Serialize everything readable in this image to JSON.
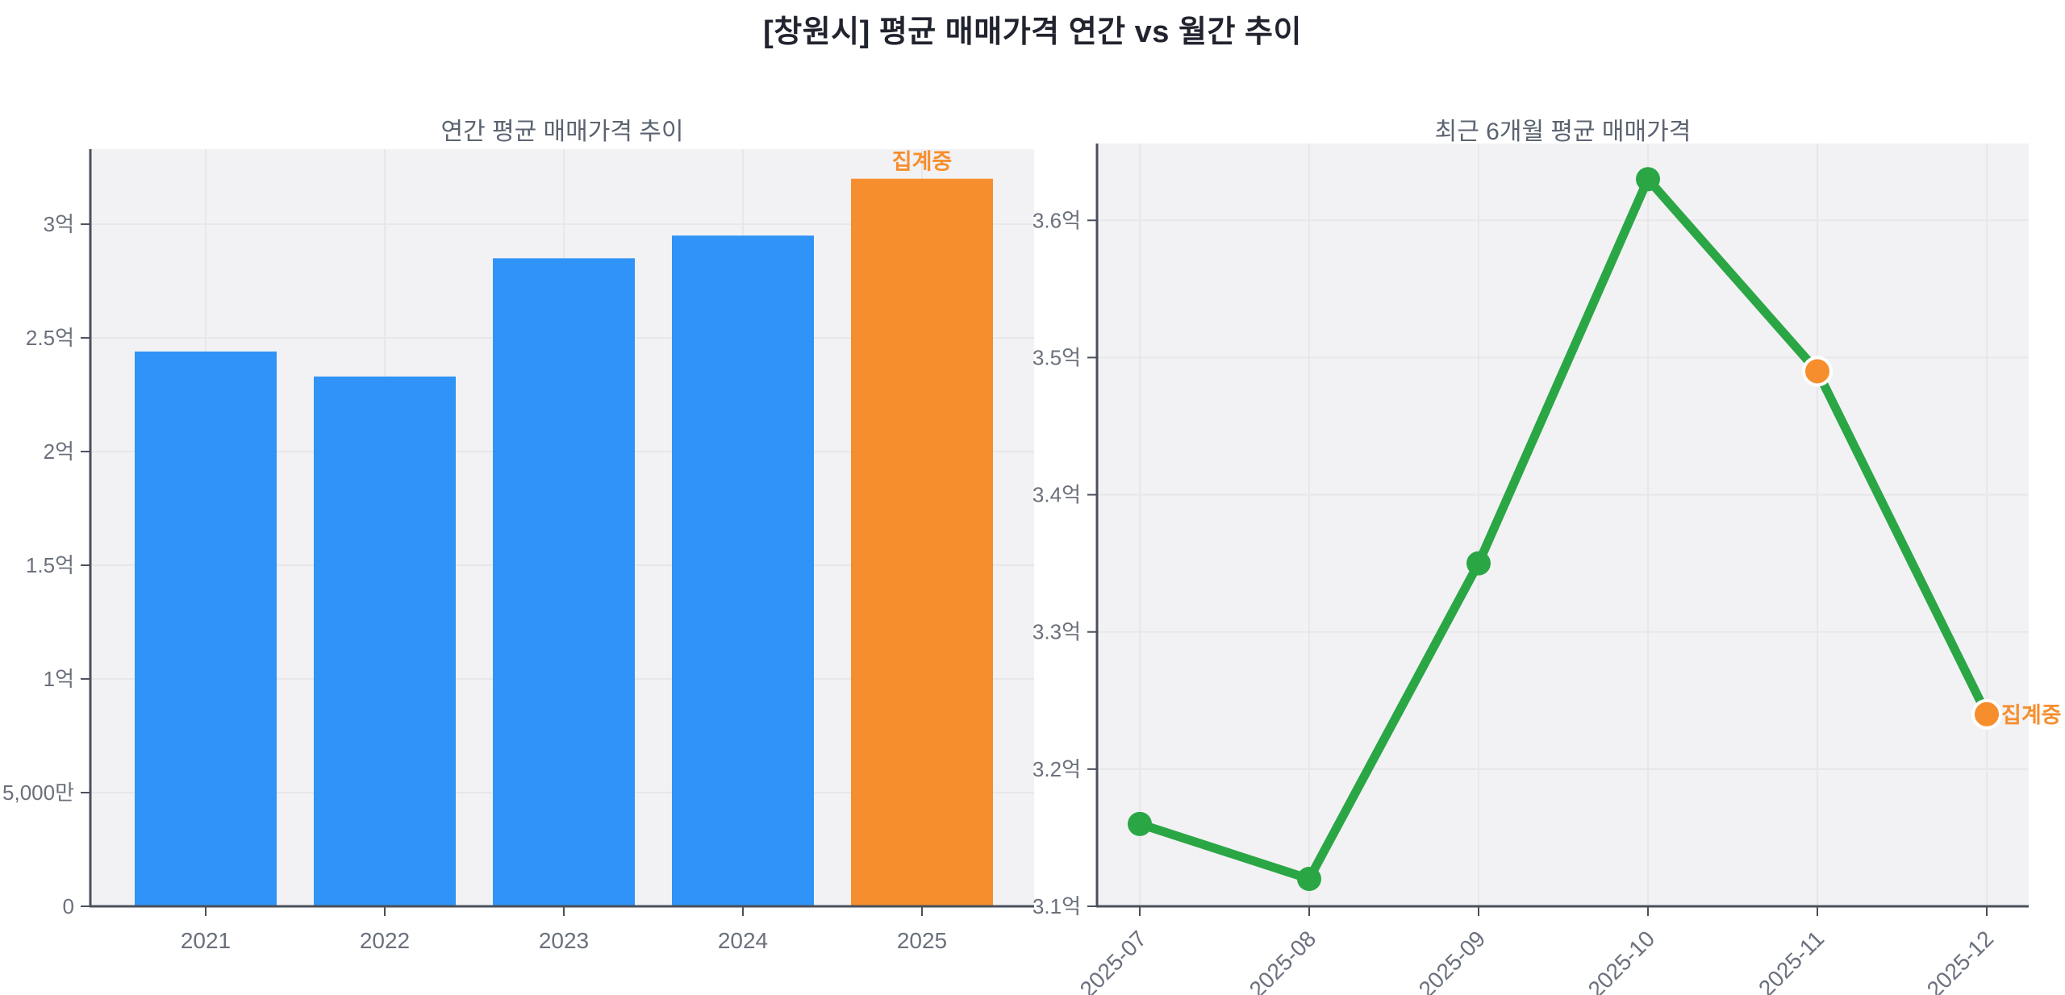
{
  "page_title": "[창원시] 평균 매매가격 연간 vs 월간 추이",
  "colors": {
    "bar_blue": "#3093f7",
    "accent_orange": "#f78e2e",
    "line_green": "#2ba645",
    "plot_background": "#f2f2f4",
    "gridline": "#e7e7ea",
    "axis": "#4a505c",
    "tick_label": "#6a707c",
    "title": "#21242e",
    "subtitle": "#5b6370",
    "marker_ring": "#ffffff"
  },
  "chart_data": [
    {
      "type": "bar",
      "title": "연간 평균 매매가격 추이",
      "categories": [
        "2021",
        "2022",
        "2023",
        "2024",
        "2025"
      ],
      "values_eok": [
        2.44,
        2.33,
        2.85,
        2.95,
        3.2
      ],
      "bar_colors": [
        "blue",
        "blue",
        "blue",
        "blue",
        "orange"
      ],
      "annotation": {
        "text": "집계중",
        "category": "2025"
      },
      "yticks": [
        {
          "label": "0",
          "value_eok": 0
        },
        {
          "label": "5,000만",
          "value_eok": 0.5
        },
        {
          "label": "1억",
          "value_eok": 1
        },
        {
          "label": "1.5억",
          "value_eok": 1.5
        },
        {
          "label": "2억",
          "value_eok": 2
        },
        {
          "label": "2.5억",
          "value_eok": 2.5
        },
        {
          "label": "3억",
          "value_eok": 3
        }
      ],
      "ylim_eok": [
        0,
        3.33
      ],
      "grid": true,
      "legend": "none"
    },
    {
      "type": "line",
      "title": "최근 6개월 평균 매매가격",
      "x": [
        "2025-07",
        "2025-08",
        "2025-09",
        "2025-10",
        "2025-11",
        "2025-12"
      ],
      "values_eok": [
        3.16,
        3.12,
        3.35,
        3.63,
        3.49,
        3.24
      ],
      "point_colors": [
        "green",
        "green",
        "green",
        "green",
        "orange",
        "orange"
      ],
      "annotation": {
        "text": "집계중",
        "x": "2025-12"
      },
      "yticks": [
        {
          "label": "3.1억",
          "value_eok": 3.1
        },
        {
          "label": "3.2억",
          "value_eok": 3.2
        },
        {
          "label": "3.3억",
          "value_eok": 3.3
        },
        {
          "label": "3.4억",
          "value_eok": 3.4
        },
        {
          "label": "3.5억",
          "value_eok": 3.5
        },
        {
          "label": "3.6억",
          "value_eok": 3.6
        }
      ],
      "ylim_eok": [
        3.1,
        3.656
      ],
      "grid": true,
      "legend": "none"
    }
  ]
}
